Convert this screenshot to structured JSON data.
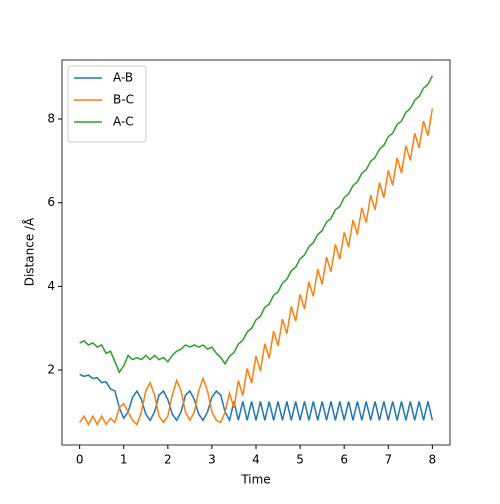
{
  "chart_data": {
    "type": "line",
    "xlabel": "Time",
    "ylabel": "Distance /Å",
    "x": [
      0,
      0.1,
      0.2,
      0.3,
      0.4,
      0.5,
      0.6,
      0.7,
      0.8,
      0.9,
      1,
      1.1,
      1.2,
      1.3,
      1.4,
      1.5,
      1.6,
      1.7,
      1.8,
      1.9,
      2,
      2.1,
      2.2,
      2.3,
      2.4,
      2.5,
      2.6,
      2.7,
      2.8,
      2.9,
      3,
      3.1,
      3.2,
      3.3,
      3.4,
      3.5,
      3.6,
      3.7,
      3.8,
      3.9,
      4,
      4.1,
      4.2,
      4.3,
      4.4,
      4.5,
      4.6,
      4.7,
      4.8,
      4.9,
      5,
      5.1,
      5.2,
      5.3,
      5.4,
      5.5,
      5.6,
      5.7,
      5.8,
      5.9,
      6,
      6.1,
      6.2,
      6.3,
      6.4,
      6.5,
      6.6,
      6.7,
      6.8,
      6.9,
      7,
      7.1,
      7.2,
      7.3,
      7.4,
      7.5,
      7.6,
      7.7,
      7.8,
      7.9,
      8
    ],
    "series": [
      {
        "name": "A-B",
        "color": "#1f77b4",
        "values": [
          1.9,
          1.85,
          1.88,
          1.8,
          1.82,
          1.7,
          1.72,
          1.55,
          1.5,
          1.1,
          0.85,
          1.0,
          1.35,
          1.5,
          1.3,
          0.95,
          0.8,
          1.0,
          1.4,
          1.5,
          1.3,
          0.95,
          0.8,
          1.0,
          1.4,
          1.5,
          1.3,
          0.95,
          0.8,
          1.0,
          1.35,
          1.5,
          1.4,
          1.0,
          0.8,
          1.25,
          0.8,
          1.25,
          0.8,
          1.25,
          0.8,
          1.25,
          0.8,
          1.25,
          0.8,
          1.25,
          0.8,
          1.25,
          0.8,
          1.25,
          0.8,
          1.25,
          0.8,
          1.25,
          0.8,
          1.25,
          0.8,
          1.25,
          0.8,
          1.25,
          0.8,
          1.25,
          0.8,
          1.25,
          0.8,
          1.25,
          0.8,
          1.25,
          0.8,
          1.25,
          0.8,
          1.25,
          0.8,
          1.25,
          0.8,
          1.25,
          0.8,
          1.25,
          0.8,
          1.25,
          0.8
        ]
      },
      {
        "name": "B-C",
        "color": "#ff7f0e",
        "values": [
          0.75,
          0.9,
          0.7,
          0.9,
          0.7,
          0.9,
          0.7,
          0.85,
          0.75,
          1.1,
          1.2,
          1.0,
          0.8,
          0.7,
          1.0,
          1.5,
          1.7,
          1.4,
          0.9,
          0.75,
          0.9,
          1.4,
          1.75,
          1.5,
          1.0,
          0.8,
          1.0,
          1.5,
          1.8,
          1.5,
          1.0,
          0.8,
          0.75,
          1.0,
          1.45,
          1.1,
          1.75,
          1.39,
          2.04,
          1.69,
          2.34,
          1.98,
          2.63,
          2.28,
          2.93,
          2.58,
          3.22,
          2.87,
          3.52,
          3.17,
          3.81,
          3.46,
          4.11,
          3.76,
          4.41,
          4.05,
          4.7,
          4.35,
          5.0,
          4.65,
          5.29,
          4.94,
          5.59,
          5.24,
          5.88,
          5.53,
          6.18,
          5.83,
          6.48,
          6.12,
          6.77,
          6.42,
          7.07,
          6.71,
          7.36,
          7.01,
          7.66,
          7.31,
          7.95,
          7.6,
          8.25
        ]
      },
      {
        "name": "A-C",
        "color": "#2ca02c",
        "values": [
          2.65,
          2.7,
          2.6,
          2.65,
          2.55,
          2.6,
          2.4,
          2.45,
          2.2,
          1.95,
          2.1,
          2.35,
          2.25,
          2.3,
          2.25,
          2.35,
          2.25,
          2.35,
          2.25,
          2.3,
          2.2,
          2.35,
          2.45,
          2.5,
          2.6,
          2.55,
          2.6,
          2.55,
          2.6,
          2.5,
          2.55,
          2.4,
          2.3,
          2.15,
          2.33,
          2.42,
          2.62,
          2.71,
          2.91,
          3.0,
          3.2,
          3.29,
          3.5,
          3.58,
          3.79,
          3.87,
          4.08,
          4.17,
          4.37,
          4.46,
          4.66,
          4.75,
          4.95,
          5.04,
          5.24,
          5.33,
          5.54,
          5.62,
          5.83,
          5.91,
          6.12,
          6.21,
          6.41,
          6.5,
          6.7,
          6.79,
          6.99,
          7.08,
          7.28,
          7.37,
          7.58,
          7.66,
          7.87,
          7.95,
          8.16,
          8.25,
          8.45,
          8.54,
          8.74,
          8.83,
          9.03
        ]
      }
    ],
    "xlim": [
      -0.4,
      8.4
    ],
    "xticks": [
      0,
      1,
      2,
      3,
      4,
      5,
      6,
      7,
      8
    ],
    "ylim": [
      0.21,
      9.41
    ],
    "yticks": [
      2,
      4,
      6,
      8
    ],
    "legend": "upper left",
    "grid": false
  }
}
